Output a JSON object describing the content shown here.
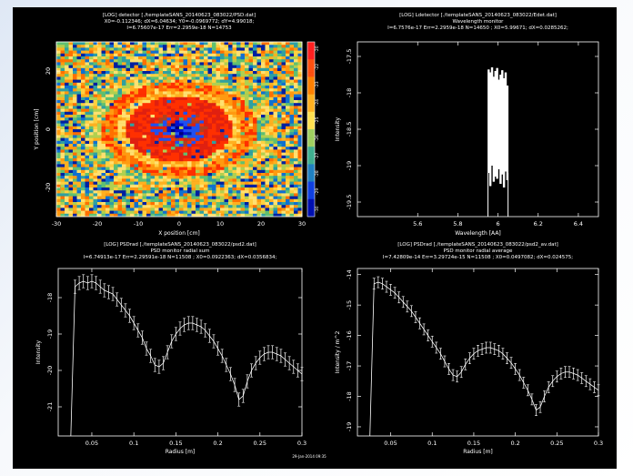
{
  "chart_data": [
    {
      "type": "heatmap",
      "title_lines": [
        "[LOG] detector [./templateSANS_20140623_083022/PSD.dat]",
        "X0=-0.112346; dX=6.04634; Y0=-0.0969772; dY=4.99018;",
        "I=6.75607e-17 Err=2.2959e-18 N=14753"
      ],
      "xlabel": "X position [cm]",
      "ylabel": "Y position [cm]",
      "xlim": [
        -30,
        30
      ],
      "ylim": [
        -30,
        30
      ],
      "xticks": [
        "-30",
        "-20",
        "-10",
        "0",
        "10",
        "20",
        "30"
      ],
      "yticks": [
        "-20",
        "0",
        "20"
      ],
      "colorbar_ticks": [
        "-20",
        "-22",
        "-23",
        "-24",
        "-25",
        "-26",
        "-27",
        "-28",
        "-29",
        "-30"
      ]
    },
    {
      "type": "line",
      "title_lines": [
        "[LOG] Ldetector [./templateSANS_20140623_083022/Edet.dat]",
        "Wavelength monitor",
        "I=6.7576e-17 Err=2.2959e-18 N=14650 ; X0=5.99671; dX=0.0285262;"
      ],
      "xlabel": "Wavelength [AA]",
      "ylabel": "Intensity",
      "xlim": [
        5.3,
        6.5
      ],
      "ylim": [
        -19.7,
        -17.3
      ],
      "xticks": [
        "5.6",
        "5.8",
        "6",
        "6.2",
        "6.4"
      ],
      "yticks": [
        "-17.5",
        "-18",
        "-18.5",
        "-19",
        "-19.5"
      ],
      "band": [
        5.95,
        6.05
      ],
      "band_top": [
        -17.68,
        -17.72,
        -17.65,
        -17.78,
        -17.7,
        -17.66,
        -17.82,
        -17.75,
        -17.69,
        -17.8,
        -17.72,
        -17.9
      ],
      "band_bottom": [
        -19.1,
        -19.25,
        -19.0,
        -19.3,
        -19.15,
        -19.2,
        -19.05,
        -19.28,
        -19.12,
        -19.22,
        -19.08,
        -19.18
      ]
    },
    {
      "type": "line",
      "title_lines": [
        "[LOG] PSDrad [./templateSANS_20140623_083022/psd2.dat]",
        "PSD monitor radial sum",
        "I=6.74913e-17 Err=2.29591e-18 N=11508 ; X0=0.0922363; dX=0.0356834;"
      ],
      "xlabel": "Radius [m]",
      "ylabel": "Intensity",
      "xlim": [
        0.01,
        0.3
      ],
      "ylim": [
        -21.8,
        -17.2
      ],
      "xticks": [
        "0.05",
        "0.1",
        "0.15",
        "0.2",
        "0.25",
        "0.3"
      ],
      "yticks": [
        "-18",
        "-19",
        "-20",
        "-21"
      ],
      "x": [
        0.025,
        0.03,
        0.035,
        0.04,
        0.045,
        0.05,
        0.055,
        0.06,
        0.065,
        0.07,
        0.075,
        0.08,
        0.085,
        0.09,
        0.095,
        0.1,
        0.105,
        0.11,
        0.115,
        0.12,
        0.125,
        0.13,
        0.135,
        0.14,
        0.145,
        0.15,
        0.155,
        0.16,
        0.165,
        0.17,
        0.175,
        0.18,
        0.185,
        0.19,
        0.195,
        0.2,
        0.205,
        0.21,
        0.215,
        0.22,
        0.225,
        0.23,
        0.235,
        0.24,
        0.245,
        0.25,
        0.255,
        0.26,
        0.265,
        0.27,
        0.275,
        0.28,
        0.285,
        0.29,
        0.295,
        0.3
      ],
      "y": [
        -21.8,
        -17.7,
        -17.6,
        -17.55,
        -17.6,
        -17.55,
        -17.6,
        -17.7,
        -17.8,
        -17.85,
        -17.9,
        -18.05,
        -18.2,
        -18.35,
        -18.5,
        -18.7,
        -18.9,
        -19.1,
        -19.4,
        -19.6,
        -19.85,
        -19.9,
        -19.8,
        -19.5,
        -19.2,
        -19.0,
        -18.85,
        -18.75,
        -18.7,
        -18.7,
        -18.75,
        -18.8,
        -18.9,
        -19.05,
        -19.2,
        -19.4,
        -19.6,
        -19.85,
        -20.1,
        -20.4,
        -20.8,
        -20.7,
        -20.3,
        -20.0,
        -19.8,
        -19.65,
        -19.55,
        -19.5,
        -19.5,
        -19.55,
        -19.6,
        -19.7,
        -19.8,
        -19.9,
        -20.0,
        -20.1
      ],
      "err": 0.18,
      "footer": "29-Jan-2014 09:35"
    },
    {
      "type": "line",
      "title_lines": [
        "[LOG] PSDrad [./templateSANS_20140623_083022/psd2_av.dat]",
        "PSD monitor radial average",
        "I=7.42809e-14 Err=3.29724e-15 N=11508 ; X0=0.0497082; dX=0.024575;"
      ],
      "xlabel": "Radius [m]",
      "ylabel": "Intensity / m^2",
      "xlim": [
        0.01,
        0.3
      ],
      "ylim": [
        -19.3,
        -13.8
      ],
      "xticks": [
        "0.05",
        "0.1",
        "0.15",
        "0.2",
        "0.25",
        "0.3"
      ],
      "yticks": [
        "-14",
        "-15",
        "-16",
        "-17",
        "-18",
        "-19"
      ],
      "x": [
        0.025,
        0.03,
        0.035,
        0.04,
        0.045,
        0.05,
        0.055,
        0.06,
        0.065,
        0.07,
        0.075,
        0.08,
        0.085,
        0.09,
        0.095,
        0.1,
        0.105,
        0.11,
        0.115,
        0.12,
        0.125,
        0.13,
        0.135,
        0.14,
        0.145,
        0.15,
        0.155,
        0.16,
        0.165,
        0.17,
        0.175,
        0.18,
        0.185,
        0.19,
        0.195,
        0.2,
        0.205,
        0.21,
        0.215,
        0.22,
        0.225,
        0.23,
        0.235,
        0.24,
        0.245,
        0.25,
        0.255,
        0.26,
        0.265,
        0.27,
        0.275,
        0.28,
        0.285,
        0.29,
        0.295,
        0.3
      ],
      "y": [
        -19.3,
        -14.3,
        -14.25,
        -14.3,
        -14.4,
        -14.5,
        -14.6,
        -14.75,
        -14.9,
        -15.05,
        -15.2,
        -15.4,
        -15.6,
        -15.8,
        -16.0,
        -16.2,
        -16.4,
        -16.6,
        -16.85,
        -17.1,
        -17.3,
        -17.35,
        -17.2,
        -16.95,
        -16.75,
        -16.6,
        -16.5,
        -16.45,
        -16.4,
        -16.4,
        -16.45,
        -16.5,
        -16.6,
        -16.75,
        -16.9,
        -17.1,
        -17.3,
        -17.55,
        -17.8,
        -18.1,
        -18.45,
        -18.35,
        -18.0,
        -17.7,
        -17.5,
        -17.35,
        -17.25,
        -17.2,
        -17.2,
        -17.25,
        -17.3,
        -17.4,
        -17.5,
        -17.6,
        -17.7,
        -17.8
      ],
      "err": 0.18
    }
  ],
  "colors": {
    "background": "#000000",
    "foreground": "#ffffff",
    "page": "#eef3fa"
  }
}
